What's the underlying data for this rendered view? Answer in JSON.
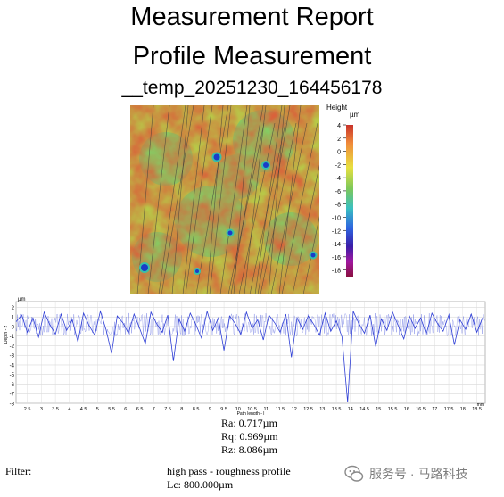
{
  "report": {
    "title": "Measurement Report",
    "subtitle": "Profile Measurement",
    "file_name": "__temp_20251230_164456178"
  },
  "height_map": {
    "colorbar_title": "Height",
    "colorbar_unit": "µm",
    "colorbar_ticks": [
      "4",
      "2",
      "0",
      "-2",
      "-4",
      "-6",
      "-8",
      "-10",
      "-12",
      "-14",
      "-16",
      "-18"
    ],
    "colorbar_range": [
      -19,
      4
    ],
    "colors": {
      "high": "#c8322a",
      "mid": "#7dc85a",
      "low": "#1a3cc8",
      "min": "#8a1040"
    }
  },
  "chart_data": {
    "type": "line",
    "title": "",
    "xlabel": "Path length - l",
    "ylabel": "Depth - z",
    "x_unit": "mm",
    "y_unit": "µm",
    "xlim": [
      2.1,
      18.8
    ],
    "ylim": [
      -8,
      2.6
    ],
    "x_ticks": [
      "2.5",
      "3",
      "3.5",
      "4",
      "4.5",
      "5",
      "5.5",
      "6",
      "6.5",
      "7",
      "7.5",
      "8",
      "8.5",
      "9",
      "9.5",
      "10",
      "10.5",
      "11",
      "11.5",
      "12",
      "12.5",
      "13",
      "13.5",
      "14",
      "14.5",
      "15",
      "15.5",
      "16",
      "16.5",
      "17",
      "17.5",
      "18",
      "18.5"
    ],
    "y_ticks": [
      "2",
      "1",
      "0",
      "-1",
      "-2",
      "-3",
      "-4",
      "-5",
      "-6",
      "-7",
      "-8"
    ],
    "series": [
      {
        "color": "#2e3ed6",
        "x": [
          2.1,
          2.3,
          2.5,
          2.7,
          2.9,
          3.1,
          3.3,
          3.5,
          3.7,
          3.9,
          4.1,
          4.3,
          4.5,
          4.7,
          4.9,
          5.1,
          5.3,
          5.5,
          5.7,
          5.9,
          6.1,
          6.3,
          6.5,
          6.7,
          6.9,
          7.1,
          7.3,
          7.5,
          7.7,
          7.9,
          8.1,
          8.3,
          8.5,
          8.7,
          8.9,
          9.1,
          9.3,
          9.5,
          9.7,
          9.9,
          10.1,
          10.3,
          10.5,
          10.7,
          10.9,
          11.1,
          11.3,
          11.5,
          11.7,
          11.9,
          12.1,
          12.3,
          12.5,
          12.7,
          12.9,
          13.1,
          13.3,
          13.5,
          13.7,
          13.9,
          14.1,
          14.3,
          14.5,
          14.7,
          14.9,
          15.1,
          15.3,
          15.5,
          15.7,
          15.9,
          16.1,
          16.3,
          16.5,
          16.7,
          16.9,
          17.1,
          17.3,
          17.5,
          17.7,
          17.9,
          18.1,
          18.3,
          18.5,
          18.7
        ],
        "y": [
          0.5,
          1.2,
          -0.6,
          0.9,
          -1.1,
          1.5,
          0.2,
          -0.8,
          1.3,
          -0.4,
          0.7,
          -1.6,
          1.4,
          0.1,
          -0.9,
          1.6,
          -0.3,
          -2.8,
          1.1,
          0.4,
          -0.7,
          1.3,
          -0.2,
          -1.8,
          1.5,
          0.3,
          -0.6,
          1.2,
          -3.6,
          0.8,
          -0.5,
          1.4,
          0.2,
          -1.2,
          1.6,
          -0.4,
          0.9,
          -2.5,
          1.1,
          0.3,
          -0.8,
          1.5,
          -0.2,
          0.7,
          -1.4,
          1.2,
          0.4,
          -0.6,
          1.3,
          -3.2,
          0.9,
          -0.3,
          1.1,
          0.2,
          -0.9,
          1.4,
          -0.5,
          0.6,
          -1.1,
          -7.9,
          1.6,
          0.3,
          -0.7,
          1.2,
          -2.1,
          0.8,
          -0.4,
          1.5,
          0.1,
          -1.3,
          1.1,
          -0.2,
          0.9,
          -0.8,
          1.4,
          0.3,
          -0.5,
          1.2,
          -1.9,
          0.7,
          -0.3,
          1.3,
          -0.6,
          0.9
        ]
      }
    ]
  },
  "stats": {
    "ra": "Ra: 0.717µm",
    "rq": "Rq: 0.969µm",
    "rz": "Rz: 8.086µm"
  },
  "filter": {
    "label": "Filter:",
    "type": "high pass - roughness profile",
    "cutoff": "Lc: 800.000µm"
  },
  "watermark": {
    "text": "服务号 · 马路科技"
  }
}
